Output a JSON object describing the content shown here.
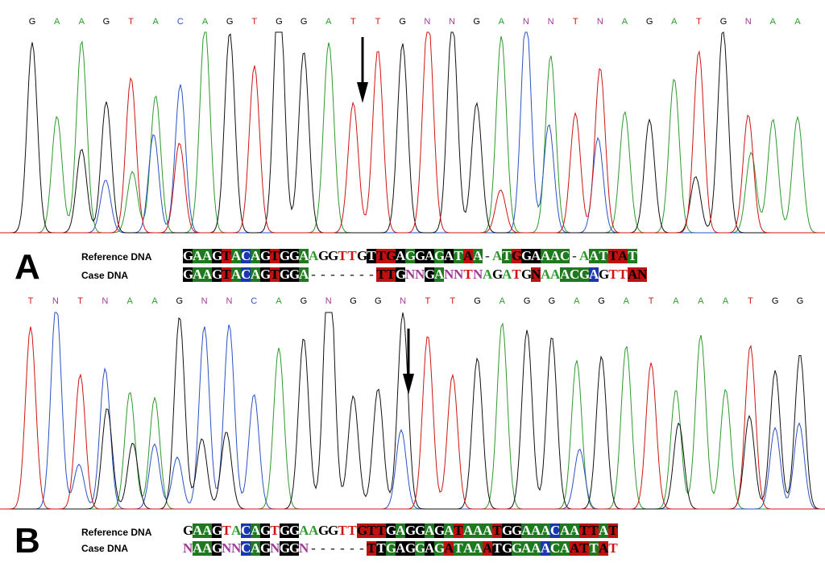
{
  "colors": {
    "A": "#2e9a2e",
    "C": "#2b52c4",
    "G": "#000000",
    "T": "#d01414",
    "N": "#a03c98",
    "bgA": "#1f7a1f",
    "bgC": "#1a37b0",
    "bgG": "#000000",
    "bgT": "#c01010"
  },
  "panel_a": {
    "label": "A",
    "base_calls": "G A A G T A C A G T G G A T T G N N G A N N T N A G A T G N A A",
    "reference_label": "Reference DNA",
    "case_label": "Case DNA",
    "reference_seq": "GAAGTACAGTGGAAGGTTGTTGAGGAGATAA-ATGGAAAC-AATTAT",
    "case_seq": "GAAGTACAGTGGA-------TTGNNGANNTNAGATGNAAACGAGTTAN",
    "reference_shaded": "GAAGTACAGTGGA------GTTGAGGAGATAA-ATGGAAAC-AATTA-",
    "case_shaded": "GAAGTACAGTGGA-------TTG--GA---------T--AAAC---TT--"
  },
  "panel_b": {
    "label": "B",
    "base_calls": "T N T N A A G N N C A G N G G N T T G A G G A G A T A A A T G G",
    "reference_label": "Reference DNA",
    "case_label": "Case DNA",
    "reference_seq": "GAAGTACAGTGGAAGGTTGTTGAGGAGATAAATGGAAACAATTAT",
    "case_seq": "NAAGNNCAGNGGN------TTGAGGAGATAAATGGAAACAATTAT",
    "reference_shaded": "-AAG--CAG-GG------TTTGAGGAGATAAATGGAAACAATTAT",
    "case_shaded": "-AAG--CAG-GG------TTGAGGAGATAAATGGAAACAATTAT"
  }
}
